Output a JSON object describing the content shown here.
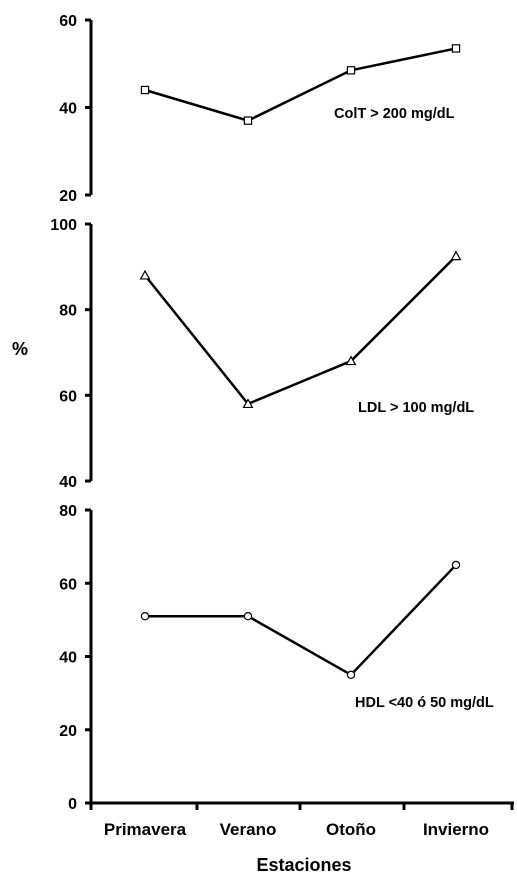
{
  "chart_data": {
    "type": "line",
    "xlabel": "Estaciones",
    "ylabel": "%",
    "categories": [
      "Primavera",
      "Verano",
      "Otoño",
      "Invierno"
    ],
    "panels": [
      {
        "label": "ColT > 200 mg/dL",
        "marker": "square",
        "ylim": [
          20,
          60
        ],
        "yticks": [
          "20",
          "40",
          "60"
        ],
        "values": [
          44,
          37,
          48.5,
          53.5
        ]
      },
      {
        "label": "LDL > 100 mg/dL",
        "marker": "triangle",
        "ylim": [
          40,
          100
        ],
        "yticks": [
          "40",
          "60",
          "80",
          "100"
        ],
        "values": [
          88,
          58,
          68,
          92.5
        ]
      },
      {
        "label": "HDL <40 ó 50 mg/dL",
        "marker": "circle",
        "ylim": [
          0,
          80
        ],
        "yticks": [
          "0",
          "20",
          "40",
          "60",
          "80"
        ],
        "values": [
          51,
          51,
          35,
          65
        ]
      }
    ]
  }
}
